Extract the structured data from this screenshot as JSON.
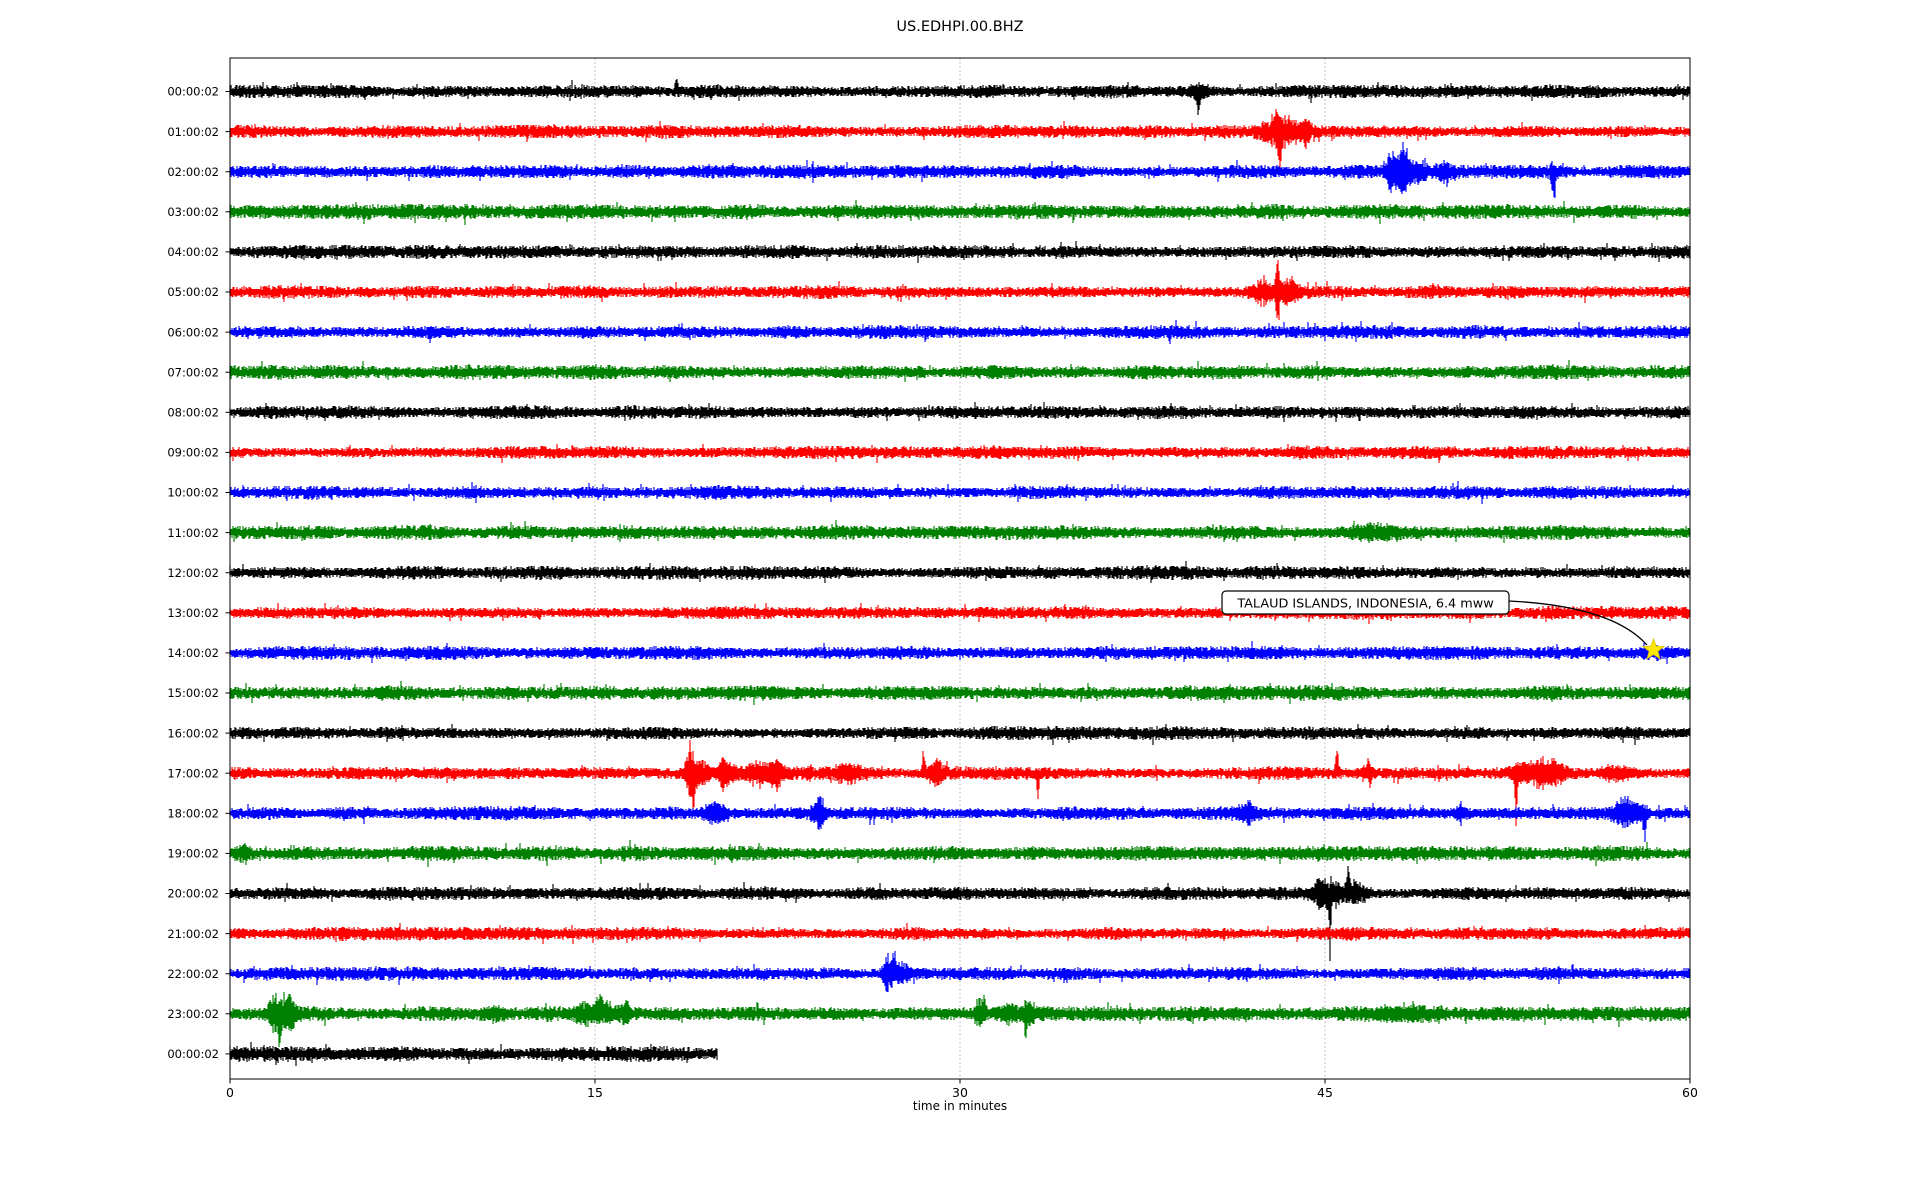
{
  "title": "US.EDHPI.00.BHZ",
  "chart_data": {
    "type": "line",
    "subtype": "seismogram-dayplot",
    "title": "US.EDHPI.00.BHZ",
    "xlabel": "time in minutes",
    "x_ticks": [
      "0",
      "15",
      "30",
      "45",
      "60"
    ],
    "x_tick_minutes": [
      0,
      15,
      30,
      45,
      60
    ],
    "x_range": [
      0,
      60
    ],
    "minutes_per_line": 60,
    "grid": {
      "vertical_minutes": [
        15,
        30,
        45
      ],
      "style": "dotted",
      "color": "#b0b0b0"
    },
    "trace_color_cycle": [
      "#000000",
      "#ff0000",
      "#0000ff",
      "#008000"
    ],
    "annotation": {
      "text": "TALAUD ISLANDS, INDONESIA, 6.4 mww",
      "row": 14,
      "minute": 58.5,
      "marker": "star",
      "marker_color": "#ffe600",
      "marker_edge_color": "#d8c000"
    },
    "rows": [
      {
        "label": "00:00:02",
        "color": "#000000",
        "end": 60,
        "base": 4.3,
        "events": [
          {
            "m": 18.35,
            "a": 9,
            "w": 0.05,
            "side": "up"
          },
          {
            "m": 39.8,
            "a": 13,
            "w": 0.05,
            "side": "down"
          },
          {
            "m": 39.85,
            "a": 5,
            "w": 0.3
          }
        ]
      },
      {
        "label": "01:00:02",
        "color": "#ff0000",
        "end": 60,
        "base": 4.3,
        "events": [
          {
            "m": 43.2,
            "a": 11,
            "w": 0.5
          },
          {
            "m": 43.15,
            "a": 20,
            "w": 0.06,
            "side": "down"
          },
          {
            "m": 43.0,
            "a": 8,
            "w": 0.08,
            "side": "up"
          },
          {
            "m": 44.2,
            "a": 8,
            "w": 0.15
          }
        ]
      },
      {
        "label": "02:00:02",
        "color": "#0000ff",
        "end": 60,
        "base": 4.3,
        "events": [
          {
            "m": 47.7,
            "a": 16,
            "w": 0.1
          },
          {
            "m": 48.2,
            "a": 20,
            "w": 0.25
          },
          {
            "m": 48.9,
            "a": 8,
            "w": 0.2
          },
          {
            "m": 49.9,
            "a": 5,
            "w": 0.3
          },
          {
            "m": 54.4,
            "a": 26,
            "w": 0.04,
            "side": "down"
          },
          {
            "m": 54.4,
            "a": 6,
            "w": 0.1
          }
        ]
      },
      {
        "label": "03:00:02",
        "color": "#008000",
        "end": 60,
        "base": 4.8,
        "events": []
      },
      {
        "label": "04:00:02",
        "color": "#000000",
        "end": 60,
        "base": 4.3,
        "events": []
      },
      {
        "label": "05:00:02",
        "color": "#ff0000",
        "end": 60,
        "base": 4.3,
        "events": [
          {
            "m": 42.4,
            "a": 8,
            "w": 0.3
          },
          {
            "m": 43.05,
            "a": 32,
            "w": 0.06
          },
          {
            "m": 43.5,
            "a": 9,
            "w": 0.25
          }
        ]
      },
      {
        "label": "06:00:02",
        "color": "#0000ff",
        "end": 60,
        "base": 4.3,
        "events": [
          {
            "m": 38.6,
            "a": 7,
            "w": 0.04,
            "side": "down"
          }
        ]
      },
      {
        "label": "07:00:02",
        "color": "#008000",
        "end": 60,
        "base": 4.8,
        "events": []
      },
      {
        "label": "08:00:02",
        "color": "#000000",
        "end": 60,
        "base": 4.3,
        "events": []
      },
      {
        "label": "09:00:02",
        "color": "#ff0000",
        "end": 60,
        "base": 4.3,
        "events": []
      },
      {
        "label": "10:00:02",
        "color": "#0000ff",
        "end": 60,
        "base": 4.3,
        "events": []
      },
      {
        "label": "11:00:02",
        "color": "#008000",
        "end": 60,
        "base": 4.8,
        "events": [
          {
            "m": 47.0,
            "a": 4,
            "w": 0.8
          }
        ]
      },
      {
        "label": "12:00:02",
        "color": "#000000",
        "end": 60,
        "base": 4.3,
        "events": []
      },
      {
        "label": "13:00:02",
        "color": "#ff0000",
        "end": 60,
        "base": 4.3,
        "events": []
      },
      {
        "label": "14:00:02",
        "color": "#0000ff",
        "end": 60,
        "base": 4.3,
        "events": [
          {
            "m": 58.5,
            "a": 2.5,
            "w": 0.5
          }
        ]
      },
      {
        "label": "15:00:02",
        "color": "#008000",
        "end": 60,
        "base": 4.8,
        "events": []
      },
      {
        "label": "16:00:02",
        "color": "#000000",
        "end": 60,
        "base": 4.3,
        "events": []
      },
      {
        "label": "17:00:02",
        "color": "#ff0000",
        "end": 60,
        "base": 4.3,
        "events": [
          {
            "m": 18.9,
            "a": 18,
            "w": 0.12
          },
          {
            "m": 19.05,
            "a": 22,
            "w": 0.05,
            "side": "down"
          },
          {
            "m": 19.3,
            "a": 8,
            "w": 0.3
          },
          {
            "m": 20.25,
            "a": 12,
            "w": 0.08
          },
          {
            "m": 20.5,
            "a": 6,
            "w": 0.25
          },
          {
            "m": 21.7,
            "a": 7,
            "w": 0.4
          },
          {
            "m": 22.45,
            "a": 9,
            "w": 0.2
          },
          {
            "m": 23.8,
            "a": 8,
            "w": 0.06
          },
          {
            "m": 25.4,
            "a": 6,
            "w": 0.35
          },
          {
            "m": 28.5,
            "a": 15,
            "w": 0.05,
            "side": "up"
          },
          {
            "m": 29.0,
            "a": 8,
            "w": 0.2
          },
          {
            "m": 33.2,
            "a": 17,
            "w": 0.04,
            "side": "down"
          },
          {
            "m": 45.5,
            "a": 21,
            "w": 0.05,
            "side": "up"
          },
          {
            "m": 46.8,
            "a": 12,
            "w": 0.05,
            "side": "up"
          },
          {
            "m": 46.85,
            "a": 16,
            "w": 0.04,
            "side": "down"
          },
          {
            "m": 52.85,
            "a": 36,
            "w": 0.04,
            "side": "down"
          },
          {
            "m": 53.0,
            "a": 6,
            "w": 0.3
          },
          {
            "m": 53.9,
            "a": 10,
            "w": 0.35
          },
          {
            "m": 54.6,
            "a": 8,
            "w": 0.25
          },
          {
            "m": 57.0,
            "a": 4,
            "w": 0.5
          }
        ]
      },
      {
        "label": "18:00:02",
        "color": "#0000ff",
        "end": 60,
        "base": 4.3,
        "events": [
          {
            "m": 19.9,
            "a": 8,
            "w": 0.3
          },
          {
            "m": 24.25,
            "a": 11,
            "w": 0.08
          },
          {
            "m": 24.2,
            "a": 6,
            "w": 0.25
          },
          {
            "m": 41.8,
            "a": 5,
            "w": 0.3
          },
          {
            "m": 50.6,
            "a": 6,
            "w": 0.15
          },
          {
            "m": 57.3,
            "a": 9,
            "w": 0.3
          },
          {
            "m": 58.15,
            "a": 20,
            "w": 0.04,
            "side": "down"
          },
          {
            "m": 58.0,
            "a": 6,
            "w": 0.2
          }
        ]
      },
      {
        "label": "19:00:02",
        "color": "#008000",
        "end": 60,
        "base": 4.8,
        "events": [
          {
            "m": 0.5,
            "a": 5,
            "w": 0.2
          }
        ]
      },
      {
        "label": "20:00:02",
        "color": "#000000",
        "end": 60,
        "base": 4.3,
        "events": [
          {
            "m": 45.2,
            "a": 52,
            "w": 0.035,
            "side": "down"
          },
          {
            "m": 45.3,
            "a": 9,
            "w": 0.4
          },
          {
            "m": 45.95,
            "a": 13,
            "w": 0.06,
            "side": "up"
          },
          {
            "m": 46.3,
            "a": 7,
            "w": 0.3
          },
          {
            "m": 44.7,
            "a": 6,
            "w": 0.15
          }
        ]
      },
      {
        "label": "21:00:02",
        "color": "#ff0000",
        "end": 60,
        "base": 4.3,
        "events": []
      },
      {
        "label": "22:00:02",
        "color": "#0000ff",
        "end": 60,
        "base": 4.3,
        "events": [
          {
            "m": 27.0,
            "a": 13,
            "w": 0.15
          },
          {
            "m": 27.3,
            "a": 15,
            "w": 0.06,
            "side": "up"
          },
          {
            "m": 27.6,
            "a": 8,
            "w": 0.25
          }
        ]
      },
      {
        "label": "23:00:02",
        "color": "#008000",
        "end": 60,
        "base": 4.8,
        "events": [
          {
            "m": 1.8,
            "a": 10,
            "w": 0.15
          },
          {
            "m": 2.05,
            "a": 24,
            "w": 0.05,
            "side": "down"
          },
          {
            "m": 2.5,
            "a": 9,
            "w": 0.12
          },
          {
            "m": 2.2,
            "a": 7,
            "w": 0.3
          },
          {
            "m": 10.9,
            "a": 4,
            "w": 0.3
          },
          {
            "m": 14.6,
            "a": 7,
            "w": 0.3
          },
          {
            "m": 15.2,
            "a": 9,
            "w": 0.15,
            "side": "up"
          },
          {
            "m": 15.5,
            "a": 6,
            "w": 0.4
          },
          {
            "m": 16.3,
            "a": 7,
            "w": 0.15
          },
          {
            "m": 30.8,
            "a": 9,
            "w": 0.15
          },
          {
            "m": 31.0,
            "a": 12,
            "w": 0.05,
            "side": "up"
          },
          {
            "m": 32.0,
            "a": 5,
            "w": 0.3
          },
          {
            "m": 32.7,
            "a": 12,
            "w": 0.04,
            "side": "down"
          },
          {
            "m": 32.8,
            "a": 6,
            "w": 0.2
          },
          {
            "m": 48.0,
            "a": 4,
            "w": 0.8
          }
        ]
      },
      {
        "label": "00:00:02",
        "color": "#000000",
        "end": 20,
        "base": 5.0,
        "events": []
      }
    ]
  }
}
